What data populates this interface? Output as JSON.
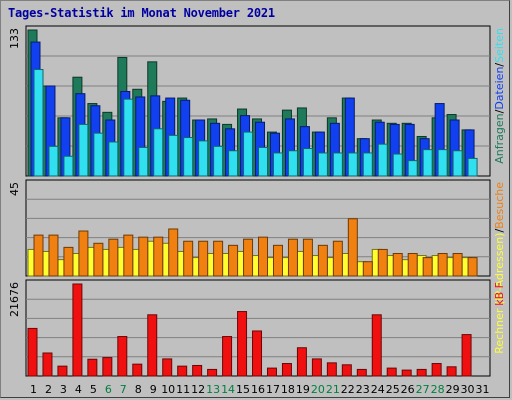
{
  "title": "Tages-Statistik im Monat November 2021",
  "chart_data": [
    {
      "type": "bar",
      "panel": "requests",
      "ymax_label": "133",
      "ylim": [
        0,
        133
      ],
      "legend": {
        "a": "Anfragen",
        "sep1": "/",
        "b": "Dateien",
        "sep2": "/",
        "c": "Seiten",
        "placement": "right-vertical"
      },
      "colors": {
        "a": "#1f7a5a",
        "b": "#1040f0",
        "c": "#30e0f0"
      },
      "categories": [
        "1",
        "2",
        "3",
        "4",
        "5",
        "6",
        "7",
        "8",
        "9",
        "10",
        "11",
        "12",
        "13",
        "14",
        "15",
        "16",
        "17",
        "18",
        "19",
        "20",
        "21",
        "22",
        "23",
        "24",
        "25",
        "26",
        "27",
        "28",
        "29",
        "30",
        "31"
      ],
      "series": [
        {
          "name": "Anfragen",
          "values": [
            133,
            82,
            53,
            90,
            66,
            58,
            108,
            79,
            104,
            68,
            71,
            51,
            52,
            47,
            61,
            52,
            40,
            60,
            62,
            40,
            53,
            71,
            34,
            51,
            48,
            48,
            36,
            53,
            56,
            42,
            0
          ]
        },
        {
          "name": "Dateien",
          "values": [
            122,
            82,
            53,
            75,
            64,
            51,
            77,
            72,
            73,
            71,
            69,
            51,
            48,
            43,
            55,
            49,
            39,
            52,
            45,
            40,
            48,
            71,
            34,
            49,
            47,
            47,
            34,
            66,
            51,
            42,
            0
          ]
        },
        {
          "name": "Seiten",
          "values": [
            97,
            27,
            18,
            47,
            39,
            31,
            70,
            26,
            43,
            37,
            35,
            32,
            27,
            23,
            40,
            26,
            21,
            23,
            25,
            21,
            21,
            21,
            21,
            29,
            20,
            14,
            24,
            24,
            23,
            16,
            0
          ]
        }
      ]
    },
    {
      "type": "bar",
      "panel": "visits",
      "ymax_label": "45",
      "ylim": [
        0,
        45
      ],
      "legend": {
        "a": "Rechner (IP-Adressen)",
        "sep1": "/",
        "b": "Besuche",
        "placement": "right-vertical"
      },
      "colors": {
        "a": "#ffff30",
        "b": "#f08010"
      },
      "series": [
        {
          "name": "Rechner (IP-Adressen)",
          "values": [
            13,
            12,
            8,
            11,
            14,
            13,
            14,
            13,
            17,
            16,
            12,
            9,
            11,
            11,
            12,
            10,
            9,
            9,
            12,
            10,
            9,
            11,
            7,
            13,
            10,
            8,
            10,
            10,
            9,
            9,
            0
          ]
        },
        {
          "name": "Besuche",
          "values": [
            20,
            20,
            14,
            22,
            16,
            18,
            20,
            19,
            19,
            23,
            17,
            17,
            17,
            15,
            18,
            19,
            15,
            18,
            18,
            15,
            17,
            28,
            7,
            13,
            11,
            11,
            9,
            11,
            11,
            9,
            0
          ]
        }
      ]
    },
    {
      "type": "bar",
      "panel": "kbytes",
      "ymax_label": "21676",
      "ylim": [
        0,
        21676
      ],
      "legend": {
        "a": "kB F",
        "placement": "right-vertical"
      },
      "colors": {
        "a": "#f01010"
      },
      "series": [
        {
          "name": "kB F",
          "values": [
            11210,
            5420,
            2320,
            21676,
            3950,
            4340,
            9300,
            2790,
            14420,
            4030,
            2320,
            2480,
            1550,
            9300,
            15190,
            10610,
            1860,
            2940,
            6660,
            4030,
            3100,
            2640,
            1550,
            14420,
            1860,
            1390,
            1550,
            2940,
            2170,
            9760,
            0
          ]
        }
      ]
    }
  ],
  "weekend_days": [
    "6",
    "7",
    "13",
    "14",
    "20",
    "21",
    "27",
    "28"
  ],
  "colors": {
    "panel_bg": "#c0c0c0",
    "grid": "#808080",
    "axis_text": "#000000",
    "weekend_text": "#008040",
    "title": "#0000a0"
  }
}
